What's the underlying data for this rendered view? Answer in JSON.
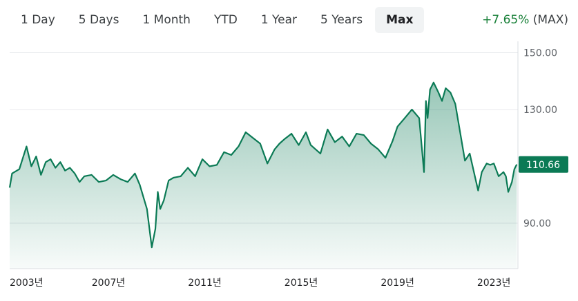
{
  "range_tabs": [
    {
      "label": "1 Day"
    },
    {
      "label": "5 Days"
    },
    {
      "label": "1 Month"
    },
    {
      "label": "YTD"
    },
    {
      "label": "1 Year"
    },
    {
      "label": "5 Years"
    },
    {
      "label": "Max",
      "active": true
    }
  ],
  "change": {
    "percent": "+7.65%",
    "period": "(MAX)"
  },
  "colors": {
    "line": "#0b7a55",
    "up": "#188038",
    "grid": "#e8eaed"
  },
  "chart_data": {
    "type": "area",
    "xlabel": "",
    "ylabel": "",
    "x_tick_labels": [
      "2003년",
      "2007년",
      "2011년",
      "2015년",
      "2019년",
      "2023년"
    ],
    "x_tick_years": [
      2003,
      2007,
      2011,
      2015,
      2019,
      2023
    ],
    "y_ticks": [
      90,
      130,
      150
    ],
    "y_tick_labels": [
      "90.00",
      "130.00",
      "150.00"
    ],
    "xlim": [
      2002.9,
      2024.0
    ],
    "ylim": [
      74,
      154
    ],
    "grid": true,
    "current_value": 110.66,
    "current_label": "110.66",
    "series": [
      {
        "x": [
          2002.9,
          2003.0,
          2003.3,
          2003.6,
          2003.8,
          2004.0,
          2004.2,
          2004.4,
          2004.6,
          2004.8,
          2005.0,
          2005.2,
          2005.4,
          2005.6,
          2005.8,
          2006.0,
          2006.3,
          2006.6,
          2006.9,
          2007.2,
          2007.5,
          2007.8,
          2008.1,
          2008.3,
          2008.6,
          2008.8,
          2008.95,
          2009.05,
          2009.15,
          2009.3,
          2009.5,
          2009.7,
          2010.0,
          2010.3,
          2010.6,
          2010.9,
          2011.2,
          2011.5,
          2011.8,
          2012.1,
          2012.4,
          2012.7,
          2013.0,
          2013.3,
          2013.6,
          2013.9,
          2014.1,
          2014.3,
          2014.6,
          2014.9,
          2015.2,
          2015.4,
          2015.6,
          2015.8,
          2016.1,
          2016.4,
          2016.7,
          2017.0,
          2017.3,
          2017.6,
          2017.9,
          2018.2,
          2018.5,
          2018.8,
          2019.0,
          2019.3,
          2019.6,
          2019.9,
          2020.1,
          2020.18,
          2020.25,
          2020.35,
          2020.5,
          2020.7,
          2020.85,
          2021.0,
          2021.2,
          2021.4,
          2021.6,
          2021.8,
          2022.0,
          2022.2,
          2022.35,
          2022.5,
          2022.7,
          2022.85,
          2023.0,
          2023.2,
          2023.4,
          2023.5,
          2023.6,
          2023.75,
          2023.85,
          2023.95
        ],
        "y": [
          102.5,
          107.5,
          109.0,
          117.0,
          110.0,
          113.5,
          107.0,
          111.5,
          112.5,
          109.5,
          111.5,
          108.5,
          109.5,
          107.5,
          104.5,
          106.5,
          107.0,
          104.5,
          105.0,
          107.0,
          105.5,
          104.5,
          107.5,
          103.5,
          95.0,
          81.5,
          88.0,
          101.0,
          95.0,
          98.0,
          105.0,
          106.0,
          106.5,
          109.5,
          106.5,
          112.5,
          110.0,
          110.5,
          115.0,
          114.0,
          117.0,
          122.0,
          120.0,
          118.0,
          111.0,
          116.0,
          118.0,
          119.5,
          121.5,
          117.5,
          122.0,
          117.5,
          116.0,
          114.5,
          123.0,
          118.5,
          120.5,
          117.0,
          121.5,
          121.0,
          118.0,
          116.0,
          113.0,
          119.0,
          124.0,
          127.0,
          130.0,
          127.0,
          108.0,
          133.0,
          127.0,
          137.0,
          139.5,
          136.0,
          133.0,
          137.5,
          136.0,
          132.0,
          122.0,
          112.0,
          114.5,
          107.0,
          101.5,
          108.0,
          111.0,
          110.5,
          111.0,
          106.5,
          108.0,
          106.5,
          101.0,
          104.5,
          109.0,
          110.66
        ]
      }
    ]
  }
}
